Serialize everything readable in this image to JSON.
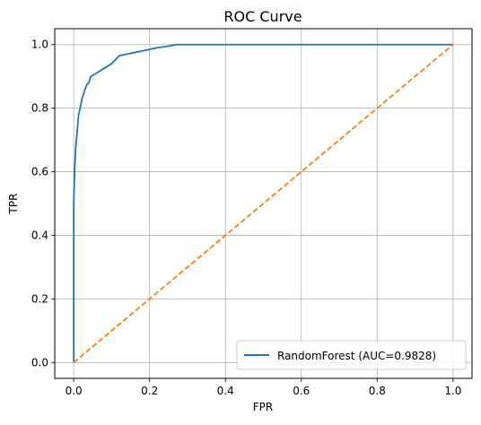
{
  "chart_data": {
    "type": "line",
    "title": "ROC Curve",
    "xlabel": "FPR",
    "ylabel": "TPR",
    "xlim": [
      -0.05,
      1.05
    ],
    "ylim": [
      -0.05,
      1.05
    ],
    "x_ticks": [
      0.0,
      0.2,
      0.4,
      0.6,
      0.8,
      1.0
    ],
    "x_tick_labels": [
      "0.0",
      "0.2",
      "0.4",
      "0.6",
      "0.8",
      "1.0"
    ],
    "y_ticks": [
      0.0,
      0.2,
      0.4,
      0.6,
      0.8,
      1.0
    ],
    "y_tick_labels": [
      "0.0",
      "0.2",
      "0.4",
      "0.6",
      "0.8",
      "1.0"
    ],
    "grid": true,
    "legend_position": "lower-right",
    "series": [
      {
        "name": "RandomForest (AUC=0.9828)",
        "color": "#1f77b4",
        "line_style": "solid",
        "in_legend": true,
        "x": [
          0.0,
          0.0,
          0.0,
          0.002,
          0.003,
          0.005,
          0.007,
          0.01,
          0.013,
          0.017,
          0.022,
          0.03,
          0.035,
          0.04,
          0.045,
          0.06,
          0.08,
          0.1,
          0.12,
          0.14,
          0.18,
          0.22,
          0.25,
          0.27,
          0.3,
          0.5,
          0.7,
          0.9,
          1.0
        ],
        "y": [
          0.0,
          0.3,
          0.5,
          0.58,
          0.62,
          0.67,
          0.7,
          0.74,
          0.78,
          0.8,
          0.83,
          0.86,
          0.875,
          0.88,
          0.9,
          0.91,
          0.925,
          0.94,
          0.965,
          0.97,
          0.98,
          0.99,
          0.995,
          1.0,
          1.0,
          1.0,
          1.0,
          1.0,
          1.0
        ]
      },
      {
        "name": "",
        "color": "#ff7f0e",
        "line_style": "dashed",
        "in_legend": false,
        "x": [
          0.0,
          1.0
        ],
        "y": [
          0.0,
          1.0
        ]
      }
    ]
  }
}
